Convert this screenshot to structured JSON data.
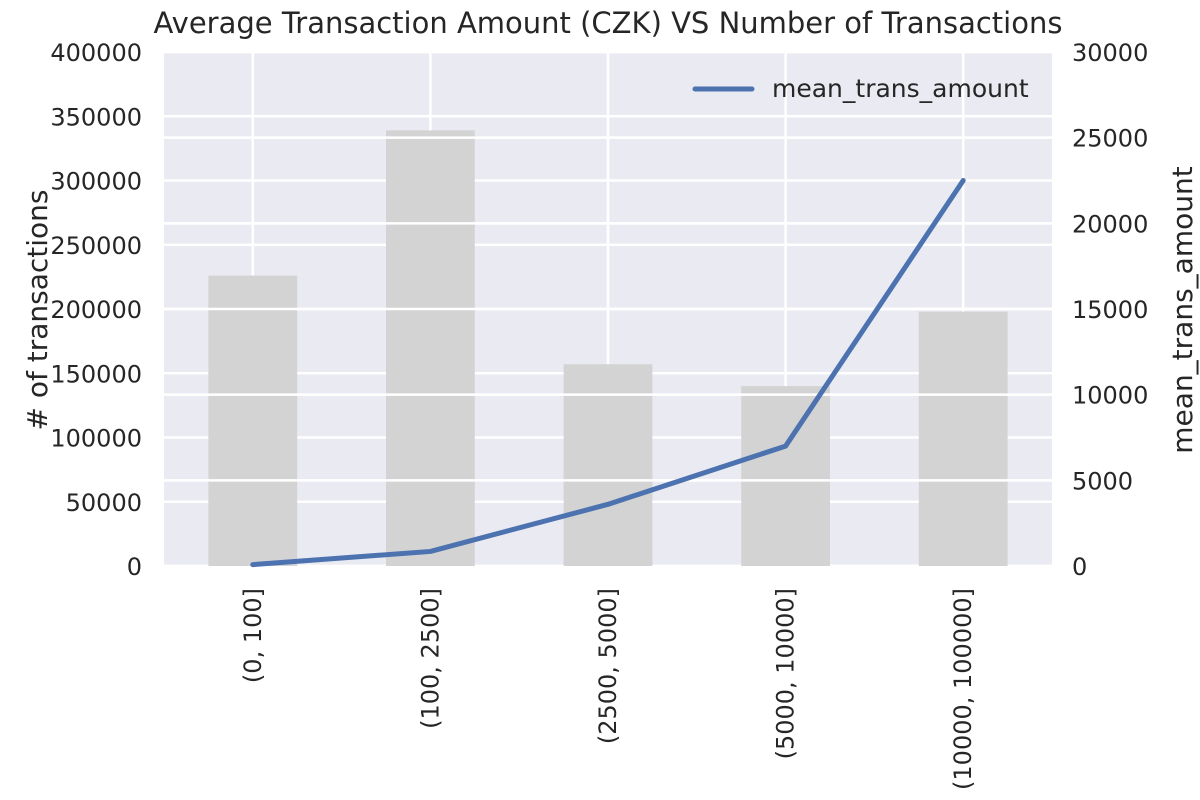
{
  "chart_data": {
    "type": "bar+line",
    "title": "Average Transaction Amount (CZK) VS Number of Transactions",
    "categories": [
      "(0, 100]",
      "(100, 2500]",
      "(2500, 5000]",
      "(5000, 10000]",
      "(10000, 100000]"
    ],
    "series": [
      {
        "type": "bar",
        "axis": "left",
        "values": [
          226000,
          339000,
          157000,
          140000,
          198000
        ],
        "color": "#d3d3d3"
      },
      {
        "type": "line",
        "axis": "right",
        "name": "mean_trans_amount",
        "values": [
          80,
          850,
          3600,
          7000,
          22500
        ],
        "color": "#4c72b0"
      }
    ],
    "ylabel": "# of transactions",
    "y2label": "mean_trans_amount",
    "ylim": [
      0,
      400000
    ],
    "y2lim": [
      0,
      30000
    ],
    "yticks": [
      "0",
      "50000",
      "100000",
      "150000",
      "200000",
      "250000",
      "300000",
      "350000",
      "400000"
    ],
    "y2ticks": [
      "0",
      "5000",
      "10000",
      "15000",
      "20000",
      "25000",
      "30000"
    ],
    "legend": {
      "placement": "upper right",
      "entries": [
        "mean_trans_amount"
      ]
    },
    "grid": true,
    "background": "#eaeaf2"
  }
}
